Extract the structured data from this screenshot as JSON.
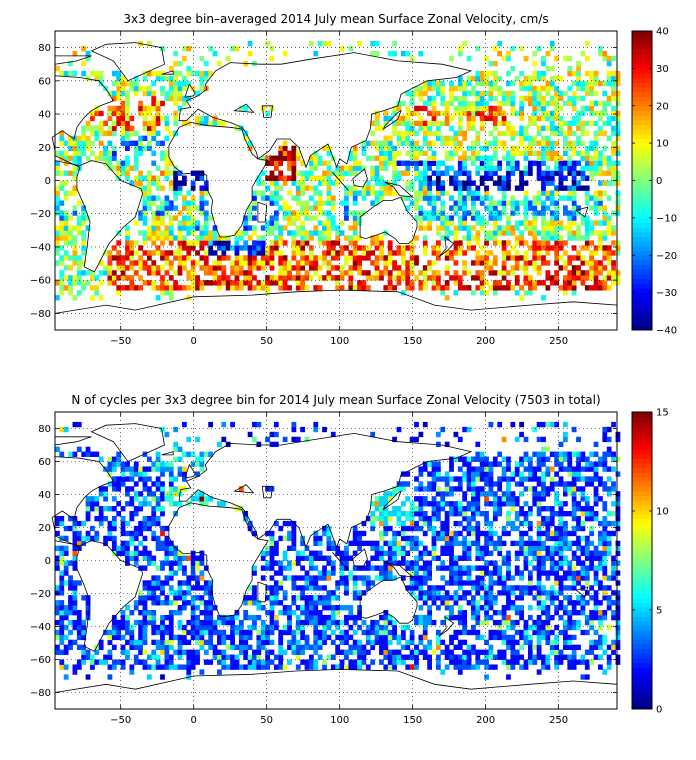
{
  "chart_data": [
    {
      "type": "heatmap",
      "title": "3x3 degree bin–averaged 2014 July mean Surface Zonal Velocity, cm/s",
      "xlim": [
        -95,
        290
      ],
      "ylim": [
        -90,
        90
      ],
      "xticks": [
        -50,
        0,
        50,
        100,
        150,
        200,
        250
      ],
      "yticks": [
        -80,
        -60,
        -40,
        -20,
        0,
        20,
        40,
        60,
        80
      ],
      "xticklabels": [
        "−50",
        "0",
        "50",
        "100",
        "150",
        "200",
        "250"
      ],
      "yticklabels": [
        "−80",
        "−60",
        "−40",
        "−20",
        "0",
        "20",
        "40",
        "60",
        "80"
      ],
      "grid": true,
      "bin_size_deg": 3,
      "colorbar": {
        "colormap": "jet",
        "limits": [
          -40,
          40
        ],
        "ticks": [
          -40,
          -30,
          -20,
          -10,
          0,
          10,
          20,
          30,
          40
        ],
        "ticklabels": [
          "−40",
          "−30",
          "−20",
          "−10",
          "0",
          "10",
          "20",
          "30",
          "40"
        ]
      },
      "regional_means": [
        {
          "lon": [
            -20,
            20
          ],
          "lat": [
            -6,
            6
          ],
          "value": -35
        },
        {
          "lon": [
            160,
            270
          ],
          "lat": [
            -6,
            6
          ],
          "value": -32
        },
        {
          "lon": [
            100,
            280
          ],
          "lat": [
            -24,
            -8
          ],
          "value": -10
        },
        {
          "lon": [
            0,
            60
          ],
          "lat": [
            -30,
            -8
          ],
          "value": -12
        },
        {
          "lon": [
            -40,
            -10
          ],
          "lat": [
            -20,
            -5
          ],
          "value": -12
        },
        {
          "lon": [
            -95,
            -30
          ],
          "lat": [
            -24,
            -8
          ],
          "value": -6
        },
        {
          "lon": [
            140,
            270
          ],
          "lat": [
            6,
            12
          ],
          "value": -20
        },
        {
          "lon": [
            -60,
            -20
          ],
          "lat": [
            10,
            28
          ],
          "value": -12
        },
        {
          "lon": [
            -40,
            -15
          ],
          "lat": [
            -8,
            8
          ],
          "value": 5
        },
        {
          "lon": [
            -70,
            -20
          ],
          "lat": [
            30,
            50
          ],
          "value": 18
        },
        {
          "lon": [
            150,
            220
          ],
          "lat": [
            32,
            46
          ],
          "value": 18
        },
        {
          "lon": [
            -60,
            290
          ],
          "lat": [
            -66,
            -36
          ],
          "value": 22
        },
        {
          "lon": [
            10,
            50
          ],
          "lat": [
            -45,
            -36
          ],
          "value": -28
        },
        {
          "lon": [
            50,
            70
          ],
          "lat": [
            0,
            20
          ],
          "value": 35
        },
        {
          "lon": [
            240,
            270
          ],
          "lat": [
            -66,
            -50
          ],
          "value": 30
        }
      ]
    },
    {
      "type": "heatmap",
      "title": "N of cycles per 3x3 degree bin for 2014 July mean Surface Zonal Velocity (7503 in total)",
      "xlim": [
        -95,
        290
      ],
      "ylim": [
        -90,
        90
      ],
      "xticks": [
        -50,
        0,
        50,
        100,
        150,
        200,
        250
      ],
      "yticks": [
        -80,
        -60,
        -40,
        -20,
        0,
        20,
        40,
        60,
        80
      ],
      "xticklabels": [
        "−50",
        "0",
        "50",
        "100",
        "150",
        "200",
        "250"
      ],
      "yticklabels": [
        "−80",
        "−60",
        "−40",
        "−20",
        "0",
        "20",
        "40",
        "60",
        "80"
      ],
      "grid": true,
      "bin_size_deg": 3,
      "total_cycles": 7503,
      "colorbar": {
        "colormap": "jet",
        "limits": [
          0,
          15
        ],
        "ticks": [
          0,
          5,
          10,
          15
        ],
        "ticklabels": [
          "0",
          "5",
          "10",
          "15"
        ]
      },
      "typical_count_range": [
        0,
        5
      ],
      "regional_means": [
        {
          "lon": [
            -95,
            290
          ],
          "lat": [
            -70,
            70
          ],
          "value": 2
        },
        {
          "lon": [
            -30,
            20
          ],
          "lat": [
            55,
            80
          ],
          "value": 4
        },
        {
          "lon": [
            -20,
            40
          ],
          "lat": [
            30,
            45
          ],
          "value": 5
        },
        {
          "lon": [
            120,
            150
          ],
          "lat": [
            20,
            45
          ],
          "value": 5
        }
      ]
    }
  ]
}
